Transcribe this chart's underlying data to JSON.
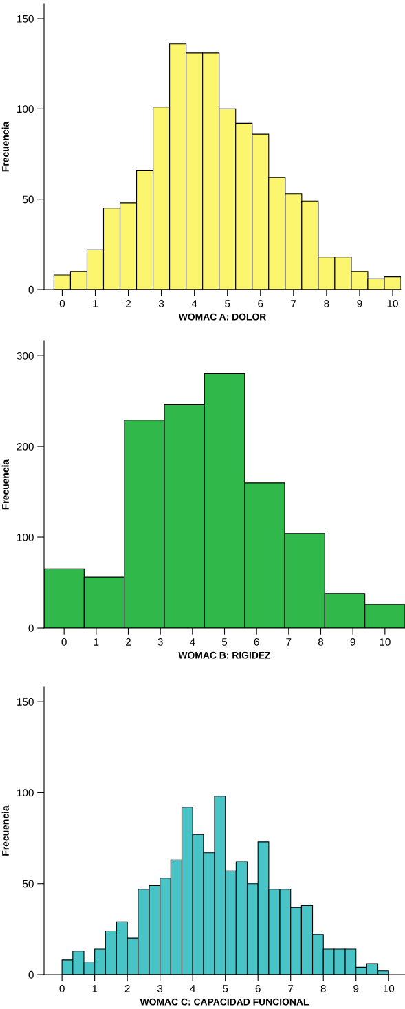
{
  "chart_data": [
    {
      "type": "histogram",
      "xlabel": "WOMAC A: DOLOR",
      "ylabel": "Frecuencia",
      "color": "#fbf66e",
      "bins": [
        -0.25,
        0.25,
        0.75,
        1.25,
        1.75,
        2.25,
        2.75,
        3.25,
        3.75,
        4.25,
        4.75,
        5.25,
        5.75,
        6.25,
        6.75,
        7.25,
        7.75,
        8.25,
        8.75,
        9.25,
        9.75,
        10.25
      ],
      "values": [
        8,
        10,
        22,
        45,
        48,
        66,
        101,
        136,
        131,
        131,
        100,
        92,
        86,
        62,
        53,
        49,
        18,
        18,
        10,
        6,
        7
      ],
      "xlim": [
        -0.55,
        10.25
      ],
      "ylim": [
        0,
        158
      ],
      "xticks": [
        0,
        1,
        2,
        3,
        4,
        5,
        6,
        7,
        8,
        9,
        10
      ],
      "yticks": [
        0,
        50,
        100,
        150
      ]
    },
    {
      "type": "histogram",
      "xlabel": "WOMAC B: RIGIDEZ",
      "ylabel": "Frecuencia",
      "color": "#31b84a",
      "bins": [
        -0.625,
        0.625,
        1.875,
        3.125,
        4.375,
        5.625,
        6.875,
        8.125,
        9.375,
        10.625
      ],
      "values": [
        65,
        56,
        229,
        246,
        280,
        160,
        104,
        38,
        26
      ],
      "xlim": [
        -0.625,
        10.625
      ],
      "ylim": [
        0,
        316
      ],
      "xticks": [
        0,
        1,
        2,
        3,
        4,
        5,
        6,
        7,
        8,
        9,
        10
      ],
      "yticks": [
        0,
        100,
        200,
        300
      ]
    },
    {
      "type": "histogram",
      "xlabel": "WOMAC C: CAPACIDAD FUNCIONAL",
      "ylabel": "Frecuencia",
      "color": "#48c3c6",
      "bins": [
        0,
        0.33,
        0.67,
        1,
        1.33,
        1.67,
        2,
        2.33,
        2.67,
        3,
        3.33,
        3.67,
        4,
        4.33,
        4.67,
        5,
        5.33,
        5.67,
        6,
        6.33,
        6.67,
        7,
        7.33,
        7.67,
        8,
        8.33,
        8.67,
        9,
        9.33,
        9.67,
        10
      ],
      "values": [
        8,
        13,
        7,
        14,
        24,
        29,
        20,
        47,
        49,
        53,
        63,
        92,
        77,
        67,
        98,
        57,
        62,
        50,
        73,
        47,
        47,
        37,
        38,
        22,
        14,
        14,
        14,
        4,
        6,
        2
      ],
      "xlim": [
        -0.55,
        10.5
      ],
      "ylim": [
        0,
        158
      ],
      "xticks": [
        0,
        1,
        2,
        3,
        4,
        5,
        6,
        7,
        8,
        9,
        10
      ],
      "yticks": [
        0,
        50,
        100,
        150
      ]
    }
  ]
}
